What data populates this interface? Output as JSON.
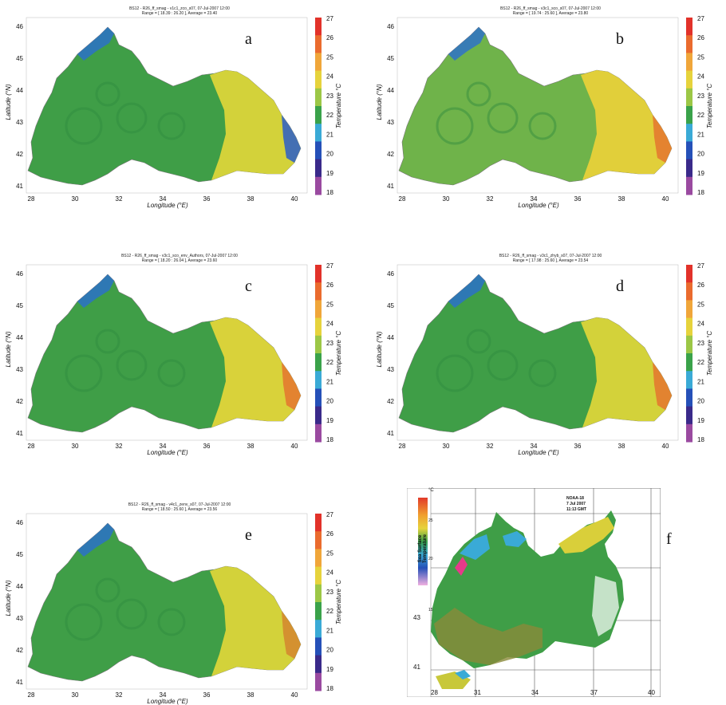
{
  "panels": [
    {
      "id": "a",
      "label": "a",
      "title": "BS12 - R26_ff_smag - v1c1_zco_s07, 07-Jul-2007 12:00",
      "range": "Range = [ 18.39 : 26.20 ], Average = 23.40",
      "x": 15,
      "y": 8,
      "land": "#3f9e47",
      "east": "#d3d23a",
      "accent": "#2a5ec9"
    },
    {
      "id": "b",
      "label": "b",
      "title": "BS12 - R26_ff_smag - v3c1_sco_s07, 07-Jul-2007 12:00",
      "range": "Range = [ 19.74 : 25.60 ], Average = 23.80",
      "x": 480,
      "y": 8,
      "land": "#6fb34a",
      "east": "#e1cf3a",
      "accent": "#e4762f"
    },
    {
      "id": "c",
      "label": "c",
      "title": "BS12 - R26_ff_smag - v3c1_sco_env_Authors, 07-Jul-2007 12:00",
      "range": "Range = [ 18.20 : 26.04 ], Average = 23.60",
      "x": 15,
      "y": 318,
      "land": "#3f9e47",
      "east": "#d9d23a",
      "accent": "#e4762f"
    },
    {
      "id": "d",
      "label": "d",
      "title": "BS12 - R26_ff_smag - v3c1_zhyb_s07, 07-Jul-2007 12:00",
      "range": "Range = [ 17.98 : 25.60 ], Average = 23.54",
      "x": 480,
      "y": 318,
      "land": "#3f9e47",
      "east": "#d3d23a",
      "accent": "#e4762f"
    },
    {
      "id": "e",
      "label": "e",
      "title": "BS12 - R26_ff_smag - v4c1_zenv_s07, 07-Jul-2007 12:00",
      "range": "Range = [ 18.50 : 25.60 ], Average = 23.56",
      "x": 15,
      "y": 630,
      "land": "#3f9e47",
      "east": "#d3d23a",
      "accent": "#d4862f"
    }
  ],
  "axes": {
    "xlabel": "Longitude (°E)",
    "ylabel": "Latitude (°N)",
    "xticks": [
      "28",
      "30",
      "32",
      "34",
      "36",
      "38",
      "40"
    ],
    "yticks": [
      "41",
      "42",
      "43",
      "44",
      "45",
      "46"
    ],
    "colorbar_label": "Temperature °C",
    "colorbar_ticks": [
      "27",
      "26",
      "25",
      "24",
      "23",
      "22",
      "21",
      "20",
      "19",
      "18"
    ],
    "colorbar_colors": [
      "#e2322a",
      "#ea6b2e",
      "#f0a63a",
      "#e6d33c",
      "#9cc746",
      "#3aa24a",
      "#3aaad6",
      "#2550b8",
      "#3a2a8a",
      "#9a4aa0"
    ]
  },
  "panel_f": {
    "label": "f",
    "sensor": "NOAA-18",
    "date": "7 Jul 2007",
    "time": "11:13 GMT",
    "unit": "°C",
    "side_title": "Sea Surface Temperature",
    "scale_ticks": [
      "25",
      "20",
      "15"
    ],
    "lat_ticks": [
      "43",
      "41"
    ],
    "lon_ticks": [
      "28",
      "31",
      "34",
      "37",
      "40"
    ]
  }
}
